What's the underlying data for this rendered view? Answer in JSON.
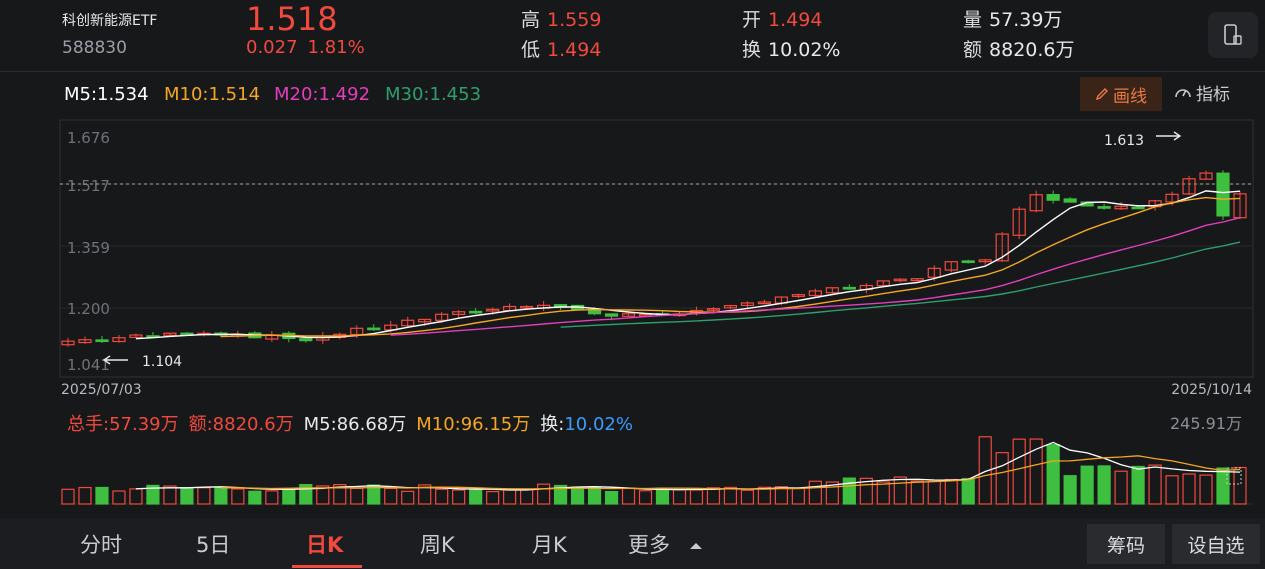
{
  "header": {
    "title": "科创新能源ETF",
    "code": "588830",
    "price": "1.518",
    "change": "0.027",
    "change_pct": "1.81%",
    "high_label": "高",
    "high": "1.559",
    "low_label": "低",
    "low": "1.494",
    "open_label": "开",
    "open": "1.494",
    "turnover_label": "换",
    "turnover": "10.02%",
    "volume_label": "量",
    "volume": "57.39万",
    "amount_label": "额",
    "amount": "8820.6万"
  },
  "ma_legend": {
    "m5": "M5:1.534",
    "m10": "M10:1.514",
    "m20": "M20:1.492",
    "m30": "M30:1.453",
    "colors": {
      "m5": "#ffffff",
      "m10": "#f5a623",
      "m20": "#e23ebd",
      "m30": "#2f9e6e"
    }
  },
  "toolbar": {
    "draw_label": "画线",
    "indicator_label": "指标"
  },
  "chart_data": {
    "type": "candlestick",
    "y_ticks": [
      "1.676",
      "1.517",
      "1.359",
      "1.200",
      "1.041"
    ],
    "ylim": [
      1.041,
      1.676
    ],
    "x_start": "2025/07/03",
    "x_end": "2025/10/14",
    "high_marker": "1.613",
    "low_marker": "1.104",
    "last_price": 1.518,
    "up_color": "#f2493d",
    "down_color": "#3fbf3f"
  },
  "volume_panel": {
    "total_label": "总手:57.39万",
    "amount_label": "额:8820.6万",
    "m5_label": "M5:86.68万",
    "m10_label": "M10:96.15万",
    "turnover_key": "换:",
    "turnover_value": "10.02%",
    "max_label": "245.91万"
  },
  "tabs": [
    "分时",
    "5日",
    "日K",
    "周K",
    "月K",
    "更多"
  ],
  "active_tab": "日K",
  "buttons": {
    "chips": "筹码",
    "custom": "设自选"
  }
}
